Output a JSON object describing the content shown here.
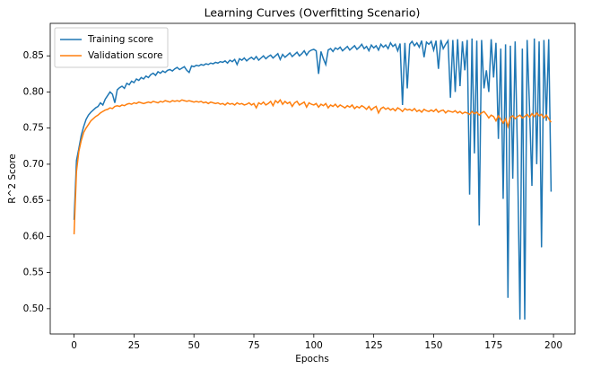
{
  "chart_data": {
    "type": "line",
    "title": "Learning Curves (Overfitting Scenario)",
    "xlabel": "Epochs",
    "ylabel": "R^2 Score",
    "legend": "upper left",
    "grid": false,
    "xlim": [
      -9.95,
      208.95
    ],
    "ylim": [
      0.465,
      0.895
    ],
    "xticks": [
      0,
      25,
      50,
      75,
      100,
      125,
      150,
      175,
      200
    ],
    "yticks": [
      {
        "value": 0.5,
        "label": "0.50"
      },
      0.55,
      {
        "value": 0.6,
        "label": "0.60"
      },
      0.65,
      {
        "value": 0.7,
        "label": "0.70"
      },
      0.75,
      {
        "value": 0.8,
        "label": "0.80"
      },
      0.85
    ],
    "x": [
      0,
      1,
      2,
      3,
      4,
      5,
      6,
      7,
      8,
      9,
      10,
      11,
      12,
      13,
      14,
      15,
      16,
      17,
      18,
      19,
      20,
      21,
      22,
      23,
      24,
      25,
      26,
      27,
      28,
      29,
      30,
      31,
      32,
      33,
      34,
      35,
      36,
      37,
      38,
      39,
      40,
      41,
      42,
      43,
      44,
      45,
      46,
      47,
      48,
      49,
      50,
      51,
      52,
      53,
      54,
      55,
      56,
      57,
      58,
      59,
      60,
      61,
      62,
      63,
      64,
      65,
      66,
      67,
      68,
      69,
      70,
      71,
      72,
      73,
      74,
      75,
      76,
      77,
      78,
      79,
      80,
      81,
      82,
      83,
      84,
      85,
      86,
      87,
      88,
      89,
      90,
      91,
      92,
      93,
      94,
      95,
      96,
      97,
      98,
      99,
      100,
      101,
      102,
      103,
      104,
      105,
      106,
      107,
      108,
      109,
      110,
      111,
      112,
      113,
      114,
      115,
      116,
      117,
      118,
      119,
      120,
      121,
      122,
      123,
      124,
      125,
      126,
      127,
      128,
      129,
      130,
      131,
      132,
      133,
      134,
      135,
      136,
      137,
      138,
      139,
      140,
      141,
      142,
      143,
      144,
      145,
      146,
      147,
      148,
      149,
      150,
      151,
      152,
      153,
      154,
      155,
      156,
      157,
      158,
      159,
      160,
      161,
      162,
      163,
      164,
      165,
      166,
      167,
      168,
      169,
      170,
      171,
      172,
      173,
      174,
      175,
      176,
      177,
      178,
      179,
      180,
      181,
      182,
      183,
      184,
      185,
      186,
      187,
      188,
      189,
      190,
      191,
      192,
      193,
      194,
      195,
      196,
      197,
      198,
      199
    ],
    "series": [
      {
        "name": "Training score",
        "color": "#1f77b4",
        "values": [
          0.623,
          0.705,
          0.722,
          0.74,
          0.752,
          0.762,
          0.768,
          0.772,
          0.775,
          0.778,
          0.78,
          0.785,
          0.782,
          0.79,
          0.795,
          0.8,
          0.797,
          0.785,
          0.803,
          0.806,
          0.808,
          0.805,
          0.812,
          0.81,
          0.815,
          0.813,
          0.818,
          0.816,
          0.82,
          0.818,
          0.822,
          0.82,
          0.824,
          0.826,
          0.823,
          0.828,
          0.826,
          0.829,
          0.827,
          0.83,
          0.831,
          0.829,
          0.832,
          0.834,
          0.831,
          0.833,
          0.835,
          0.83,
          0.827,
          0.836,
          0.835,
          0.837,
          0.836,
          0.838,
          0.837,
          0.839,
          0.838,
          0.84,
          0.839,
          0.841,
          0.84,
          0.842,
          0.841,
          0.843,
          0.84,
          0.844,
          0.842,
          0.845,
          0.838,
          0.846,
          0.844,
          0.847,
          0.843,
          0.846,
          0.848,
          0.845,
          0.849,
          0.844,
          0.847,
          0.85,
          0.846,
          0.849,
          0.851,
          0.847,
          0.85,
          0.853,
          0.845,
          0.852,
          0.848,
          0.851,
          0.854,
          0.849,
          0.852,
          0.855,
          0.85,
          0.853,
          0.857,
          0.851,
          0.856,
          0.858,
          0.859,
          0.857,
          0.825,
          0.856,
          0.846,
          0.838,
          0.858,
          0.86,
          0.856,
          0.861,
          0.859,
          0.862,
          0.857,
          0.86,
          0.863,
          0.858,
          0.861,
          0.864,
          0.859,
          0.862,
          0.866,
          0.86,
          0.863,
          0.857,
          0.865,
          0.861,
          0.864,
          0.858,
          0.866,
          0.862,
          0.865,
          0.86,
          0.868,
          0.863,
          0.866,
          0.857,
          0.867,
          0.782,
          0.868,
          0.805,
          0.866,
          0.87,
          0.864,
          0.868,
          0.862,
          0.871,
          0.848,
          0.869,
          0.866,
          0.87,
          0.858,
          0.871,
          0.832,
          0.872,
          0.86,
          0.866,
          0.871,
          0.792,
          0.872,
          0.8,
          0.873,
          0.808,
          0.87,
          0.83,
          0.872,
          0.658,
          0.874,
          0.715,
          0.871,
          0.615,
          0.872,
          0.805,
          0.83,
          0.8,
          0.873,
          0.82,
          0.868,
          0.735,
          0.86,
          0.652,
          0.866,
          0.515,
          0.864,
          0.68,
          0.87,
          0.71,
          0.485,
          0.86,
          0.485,
          0.872,
          0.778,
          0.67,
          0.874,
          0.7,
          0.87,
          0.585,
          0.872,
          0.76,
          0.873,
          0.662
        ]
      },
      {
        "name": "Validation score",
        "color": "#ff7f0e",
        "values": [
          0.603,
          0.69,
          0.718,
          0.733,
          0.744,
          0.75,
          0.755,
          0.76,
          0.763,
          0.766,
          0.768,
          0.771,
          0.773,
          0.775,
          0.776,
          0.778,
          0.777,
          0.78,
          0.781,
          0.78,
          0.782,
          0.781,
          0.783,
          0.784,
          0.783,
          0.785,
          0.784,
          0.786,
          0.785,
          0.784,
          0.785,
          0.786,
          0.785,
          0.787,
          0.786,
          0.785,
          0.787,
          0.786,
          0.788,
          0.787,
          0.786,
          0.788,
          0.787,
          0.788,
          0.787,
          0.789,
          0.788,
          0.787,
          0.788,
          0.787,
          0.786,
          0.787,
          0.786,
          0.787,
          0.785,
          0.786,
          0.784,
          0.786,
          0.785,
          0.784,
          0.785,
          0.783,
          0.784,
          0.782,
          0.785,
          0.783,
          0.784,
          0.782,
          0.785,
          0.783,
          0.784,
          0.782,
          0.783,
          0.785,
          0.782,
          0.784,
          0.778,
          0.785,
          0.783,
          0.786,
          0.782,
          0.784,
          0.787,
          0.781,
          0.788,
          0.785,
          0.789,
          0.783,
          0.787,
          0.784,
          0.786,
          0.78,
          0.785,
          0.787,
          0.782,
          0.784,
          0.786,
          0.779,
          0.785,
          0.783,
          0.782,
          0.784,
          0.779,
          0.783,
          0.781,
          0.784,
          0.778,
          0.782,
          0.78,
          0.783,
          0.779,
          0.782,
          0.78,
          0.778,
          0.781,
          0.779,
          0.782,
          0.777,
          0.78,
          0.778,
          0.781,
          0.779,
          0.776,
          0.78,
          0.775,
          0.778,
          0.78,
          0.771,
          0.777,
          0.779,
          0.776,
          0.778,
          0.775,
          0.777,
          0.774,
          0.778,
          0.776,
          0.773,
          0.777,
          0.775,
          0.776,
          0.774,
          0.777,
          0.773,
          0.775,
          0.772,
          0.776,
          0.774,
          0.773,
          0.775,
          0.773,
          0.776,
          0.772,
          0.774,
          0.775,
          0.771,
          0.774,
          0.773,
          0.772,
          0.774,
          0.771,
          0.773,
          0.77,
          0.772,
          0.771,
          0.769,
          0.773,
          0.77,
          0.772,
          0.768,
          0.771,
          0.773,
          0.769,
          0.764,
          0.768,
          0.766,
          0.76,
          0.767,
          0.762,
          0.757,
          0.763,
          0.752,
          0.765,
          0.767,
          0.763,
          0.766,
          0.768,
          0.764,
          0.766,
          0.769,
          0.765,
          0.77,
          0.766,
          0.771,
          0.767,
          0.769,
          0.764,
          0.768,
          0.763,
          0.758
        ]
      }
    ]
  }
}
